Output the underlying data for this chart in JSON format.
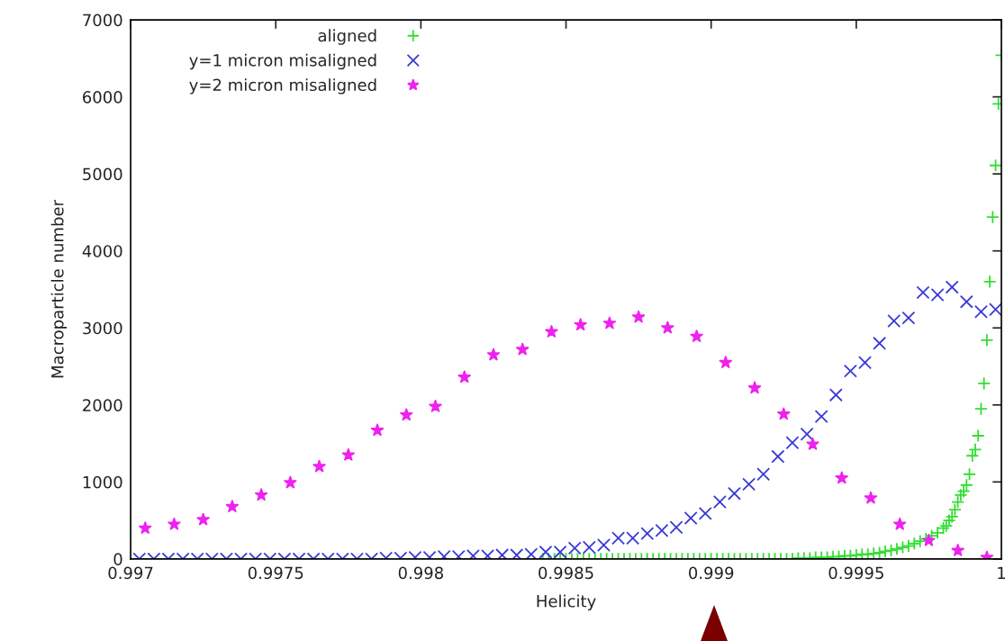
{
  "chart_data": {
    "type": "scatter",
    "xlabel": "Helicity",
    "ylabel": "Macroparticle number",
    "xlim": [
      0.997,
      1
    ],
    "xticks": [
      0.997,
      0.9975,
      0.998,
      0.9985,
      0.999,
      0.9995,
      {
        "value": 1,
        "label": "1"
      }
    ],
    "ylim": [
      0,
      7000
    ],
    "yticks": [
      0,
      1000,
      2000,
      3000,
      4000,
      5000,
      6000,
      7000
    ],
    "grid": false,
    "legend": "top left",
    "series": [
      {
        "name": "aligned",
        "color": "#33dd33",
        "marker": "plus",
        "x": [
          0.99842,
          0.99844,
          0.99846,
          0.99848,
          0.9985,
          0.99852,
          0.99854,
          0.99856,
          0.99858,
          0.9986,
          0.99862,
          0.99864,
          0.99866,
          0.99868,
          0.9987,
          0.99872,
          0.99874,
          0.99876,
          0.99878,
          0.9988,
          0.99882,
          0.99884,
          0.99886,
          0.99888,
          0.9989,
          0.99892,
          0.99894,
          0.99896,
          0.99898,
          0.999,
          0.99902,
          0.99904,
          0.99906,
          0.99908,
          0.9991,
          0.99912,
          0.99914,
          0.99916,
          0.99918,
          0.9992,
          0.99922,
          0.99924,
          0.99926,
          0.99928,
          0.9993,
          0.99932,
          0.99934,
          0.99936,
          0.99938,
          0.9994,
          0.99942,
          0.99944,
          0.99946,
          0.99948,
          0.9995,
          0.99952,
          0.99954,
          0.99956,
          0.99958,
          0.9996,
          0.99962,
          0.99964,
          0.99966,
          0.99968,
          0.9997,
          0.99972,
          0.99974,
          0.99976,
          0.99978,
          0.9998,
          0.99981,
          0.99982,
          0.99983,
          0.99984,
          0.99985,
          0.99986,
          0.99987,
          0.99988,
          0.99989,
          0.9999,
          0.99991,
          0.99992,
          0.99993,
          0.99994,
          0.99995,
          0.99996,
          0.99997,
          0.99998,
          0.99999,
          1
        ],
        "values": [
          0,
          0,
          0,
          0,
          0,
          0,
          0,
          0,
          0,
          0,
          0,
          0,
          0,
          0,
          0,
          0,
          0,
          0,
          0,
          0,
          0,
          0,
          0,
          0,
          0,
          0,
          0,
          0,
          0,
          0,
          0,
          0,
          0,
          0,
          0,
          0,
          0,
          0,
          0,
          0,
          0,
          0,
          0,
          0,
          10,
          10,
          10,
          20,
          20,
          20,
          30,
          30,
          40,
          40,
          50,
          60,
          60,
          70,
          80,
          100,
          110,
          130,
          150,
          170,
          200,
          230,
          260,
          300,
          340,
          400,
          430,
          500,
          550,
          640,
          740,
          830,
          880,
          960,
          1100,
          1340,
          1420,
          1600,
          1950,
          2280,
          2840,
          3600,
          4440,
          5110,
          5910,
          6540
        ]
      },
      {
        "name": "y=1 micron misaligned",
        "color": "#3a3ad6",
        "marker": "cross",
        "x": [
          0.99703,
          0.99708,
          0.99713,
          0.99718,
          0.99723,
          0.99728,
          0.99733,
          0.99738,
          0.99743,
          0.99748,
          0.99753,
          0.99758,
          0.99763,
          0.99768,
          0.99773,
          0.99778,
          0.99783,
          0.99788,
          0.99793,
          0.99798,
          0.99803,
          0.99808,
          0.99813,
          0.99818,
          0.99823,
          0.99828,
          0.99833,
          0.99838,
          0.99843,
          0.99848,
          0.99853,
          0.99858,
          0.99863,
          0.99868,
          0.99873,
          0.99878,
          0.99883,
          0.99888,
          0.99893,
          0.99898,
          0.99903,
          0.99908,
          0.99913,
          0.99918,
          0.99923,
          0.99928,
          0.99933,
          0.99938,
          0.99943,
          0.99948,
          0.99953,
          0.99958,
          0.99963,
          0.99968,
          0.99973,
          0.99978,
          0.99983,
          0.99988,
          0.99993,
          0.99998
        ],
        "values": [
          0,
          0,
          0,
          0,
          0,
          0,
          0,
          0,
          0,
          0,
          0,
          0,
          0,
          0,
          0,
          0,
          0,
          10,
          10,
          20,
          20,
          30,
          30,
          40,
          40,
          50,
          50,
          60,
          90,
          90,
          140,
          150,
          180,
          270,
          270,
          330,
          370,
          410,
          530,
          590,
          740,
          850,
          970,
          1100,
          1330,
          1510,
          1620,
          1850,
          2130,
          2440,
          2550,
          2800,
          3090,
          3130,
          3460,
          3430,
          3530,
          3340,
          3210,
          3240
        ]
      },
      {
        "name": "y=2 micron misaligned",
        "color": "#ee22ee",
        "marker": "star",
        "x": [
          0.99705,
          0.99715,
          0.99725,
          0.99735,
          0.99745,
          0.99755,
          0.99765,
          0.99775,
          0.99785,
          0.99795,
          0.99805,
          0.99815,
          0.99825,
          0.99835,
          0.99845,
          0.99855,
          0.99865,
          0.99875,
          0.99885,
          0.99895,
          0.99905,
          0.99915,
          0.99925,
          0.99935,
          0.99945,
          0.99955,
          0.99965,
          0.99975,
          0.99985,
          0.99995
        ],
        "values": [
          400,
          450,
          510,
          680,
          830,
          990,
          1200,
          1350,
          1670,
          1870,
          1980,
          2360,
          2650,
          2720,
          2950,
          3040,
          3060,
          3140,
          3000,
          2890,
          2550,
          2220,
          1880,
          1490,
          1050,
          790,
          450,
          240,
          110,
          20
        ]
      }
    ]
  }
}
